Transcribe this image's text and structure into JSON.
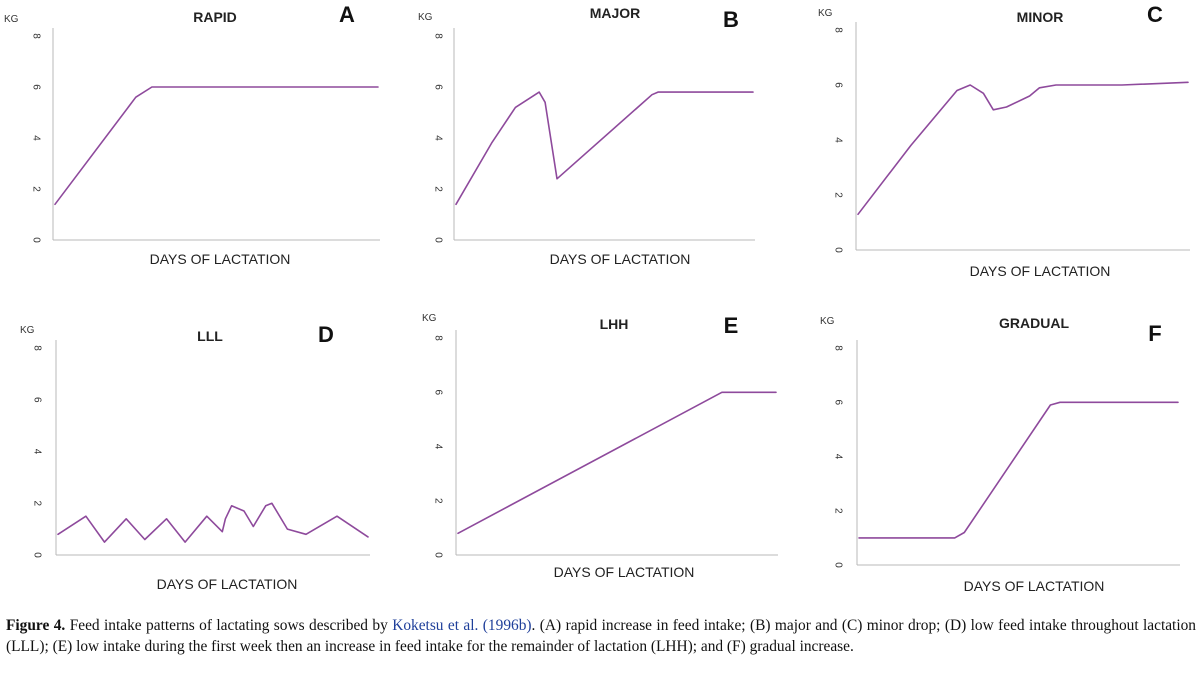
{
  "chart_data": [
    {
      "type": "line",
      "title": "RAPID",
      "panel_letter": "A",
      "ylabel": "KG",
      "xlabel": "DAYS OF LACTATION",
      "ylim": [
        0,
        8
      ],
      "yticks": [
        0,
        2,
        4,
        6,
        8
      ],
      "xlim": [
        0,
        1
      ],
      "series": [
        {
          "color": "#8e4a9c",
          "x": [
            0,
            0.25,
            0.3,
            1
          ],
          "y": [
            1.4,
            5.6,
            6.0,
            6.0
          ]
        }
      ]
    },
    {
      "type": "line",
      "title": "MAJOR",
      "panel_letter": "B",
      "ylabel": "KG",
      "xlabel": "DAYS OF LACTATION",
      "ylim": [
        0,
        8
      ],
      "yticks": [
        0,
        2,
        4,
        6,
        8
      ],
      "xlim": [
        0,
        1
      ],
      "series": [
        {
          "color": "#8e4a9c",
          "x": [
            0,
            0.12,
            0.2,
            0.28,
            0.3,
            0.34,
            0.66,
            0.68,
            1
          ],
          "y": [
            1.4,
            3.8,
            5.2,
            5.8,
            5.4,
            2.4,
            5.7,
            5.8,
            5.8
          ]
        }
      ]
    },
    {
      "type": "line",
      "title": "MINOR",
      "panel_letter": "C",
      "ylabel": "KG",
      "xlabel": "DAYS OF LACTATION",
      "ylim": [
        0,
        8
      ],
      "yticks": [
        0,
        2,
        4,
        6,
        8
      ],
      "xlim": [
        0,
        1
      ],
      "series": [
        {
          "color": "#8e4a9c",
          "x": [
            0,
            0.16,
            0.3,
            0.34,
            0.38,
            0.41,
            0.45,
            0.52,
            0.55,
            0.6,
            0.8,
            1
          ],
          "y": [
            1.3,
            3.8,
            5.8,
            6.0,
            5.7,
            5.1,
            5.2,
            5.6,
            5.9,
            6.0,
            6.0,
            6.1
          ]
        }
      ]
    },
    {
      "type": "line",
      "title": "LLL",
      "panel_letter": "D",
      "ylabel": "KG",
      "xlabel": "DAYS OF LACTATION",
      "ylim": [
        0,
        8
      ],
      "yticks": [
        0,
        2,
        4,
        6,
        8
      ],
      "xlim": [
        0,
        1
      ],
      "series": [
        {
          "color": "#8e4a9c",
          "x": [
            0,
            0.09,
            0.15,
            0.22,
            0.28,
            0.35,
            0.41,
            0.48,
            0.53,
            0.54,
            0.56,
            0.6,
            0.63,
            0.67,
            0.69,
            0.74,
            0.8,
            0.9,
            1
          ],
          "y": [
            0.8,
            1.5,
            0.5,
            1.4,
            0.6,
            1.4,
            0.5,
            1.5,
            0.9,
            1.4,
            1.9,
            1.7,
            1.1,
            1.9,
            2.0,
            1.0,
            0.8,
            1.5,
            0.7
          ]
        }
      ]
    },
    {
      "type": "line",
      "title": "LHH",
      "panel_letter": "E",
      "ylabel": "KG",
      "xlabel": "DAYS OF LACTATION",
      "ylim": [
        0,
        8
      ],
      "yticks": [
        0,
        2,
        4,
        6,
        8
      ],
      "xlim": [
        0,
        1
      ],
      "series": [
        {
          "color": "#8e4a9c",
          "x": [
            0,
            0.83,
            1
          ],
          "y": [
            0.8,
            6.0,
            6.0
          ]
        }
      ]
    },
    {
      "type": "line",
      "title": "GRADUAL",
      "panel_letter": "F",
      "ylabel": "KG",
      "xlabel": "DAYS OF LACTATION",
      "ylim": [
        0,
        8
      ],
      "yticks": [
        0,
        2,
        4,
        6,
        8
      ],
      "xlim": [
        0,
        1
      ],
      "series": [
        {
          "color": "#8e4a9c",
          "x": [
            0,
            0.3,
            0.33,
            0.6,
            0.63,
            0.7,
            1
          ],
          "y": [
            1.0,
            1.0,
            1.2,
            5.9,
            6.0,
            6.0,
            6.0
          ]
        }
      ]
    }
  ],
  "caption": {
    "label": "Figure 4.",
    "text_before_link": " Feed intake patterns of lactating sows described by ",
    "link_text": "Koketsu et al. (1996b)",
    "text_after_link": ". (A) rapid increase in feed intake; (B) major and (C) minor drop; (D) low feed intake throughout lactation (LLL); (E) low intake during the first week then an increase in feed intake for the remainder of lactation (LHH); and (F) gradual increase."
  }
}
